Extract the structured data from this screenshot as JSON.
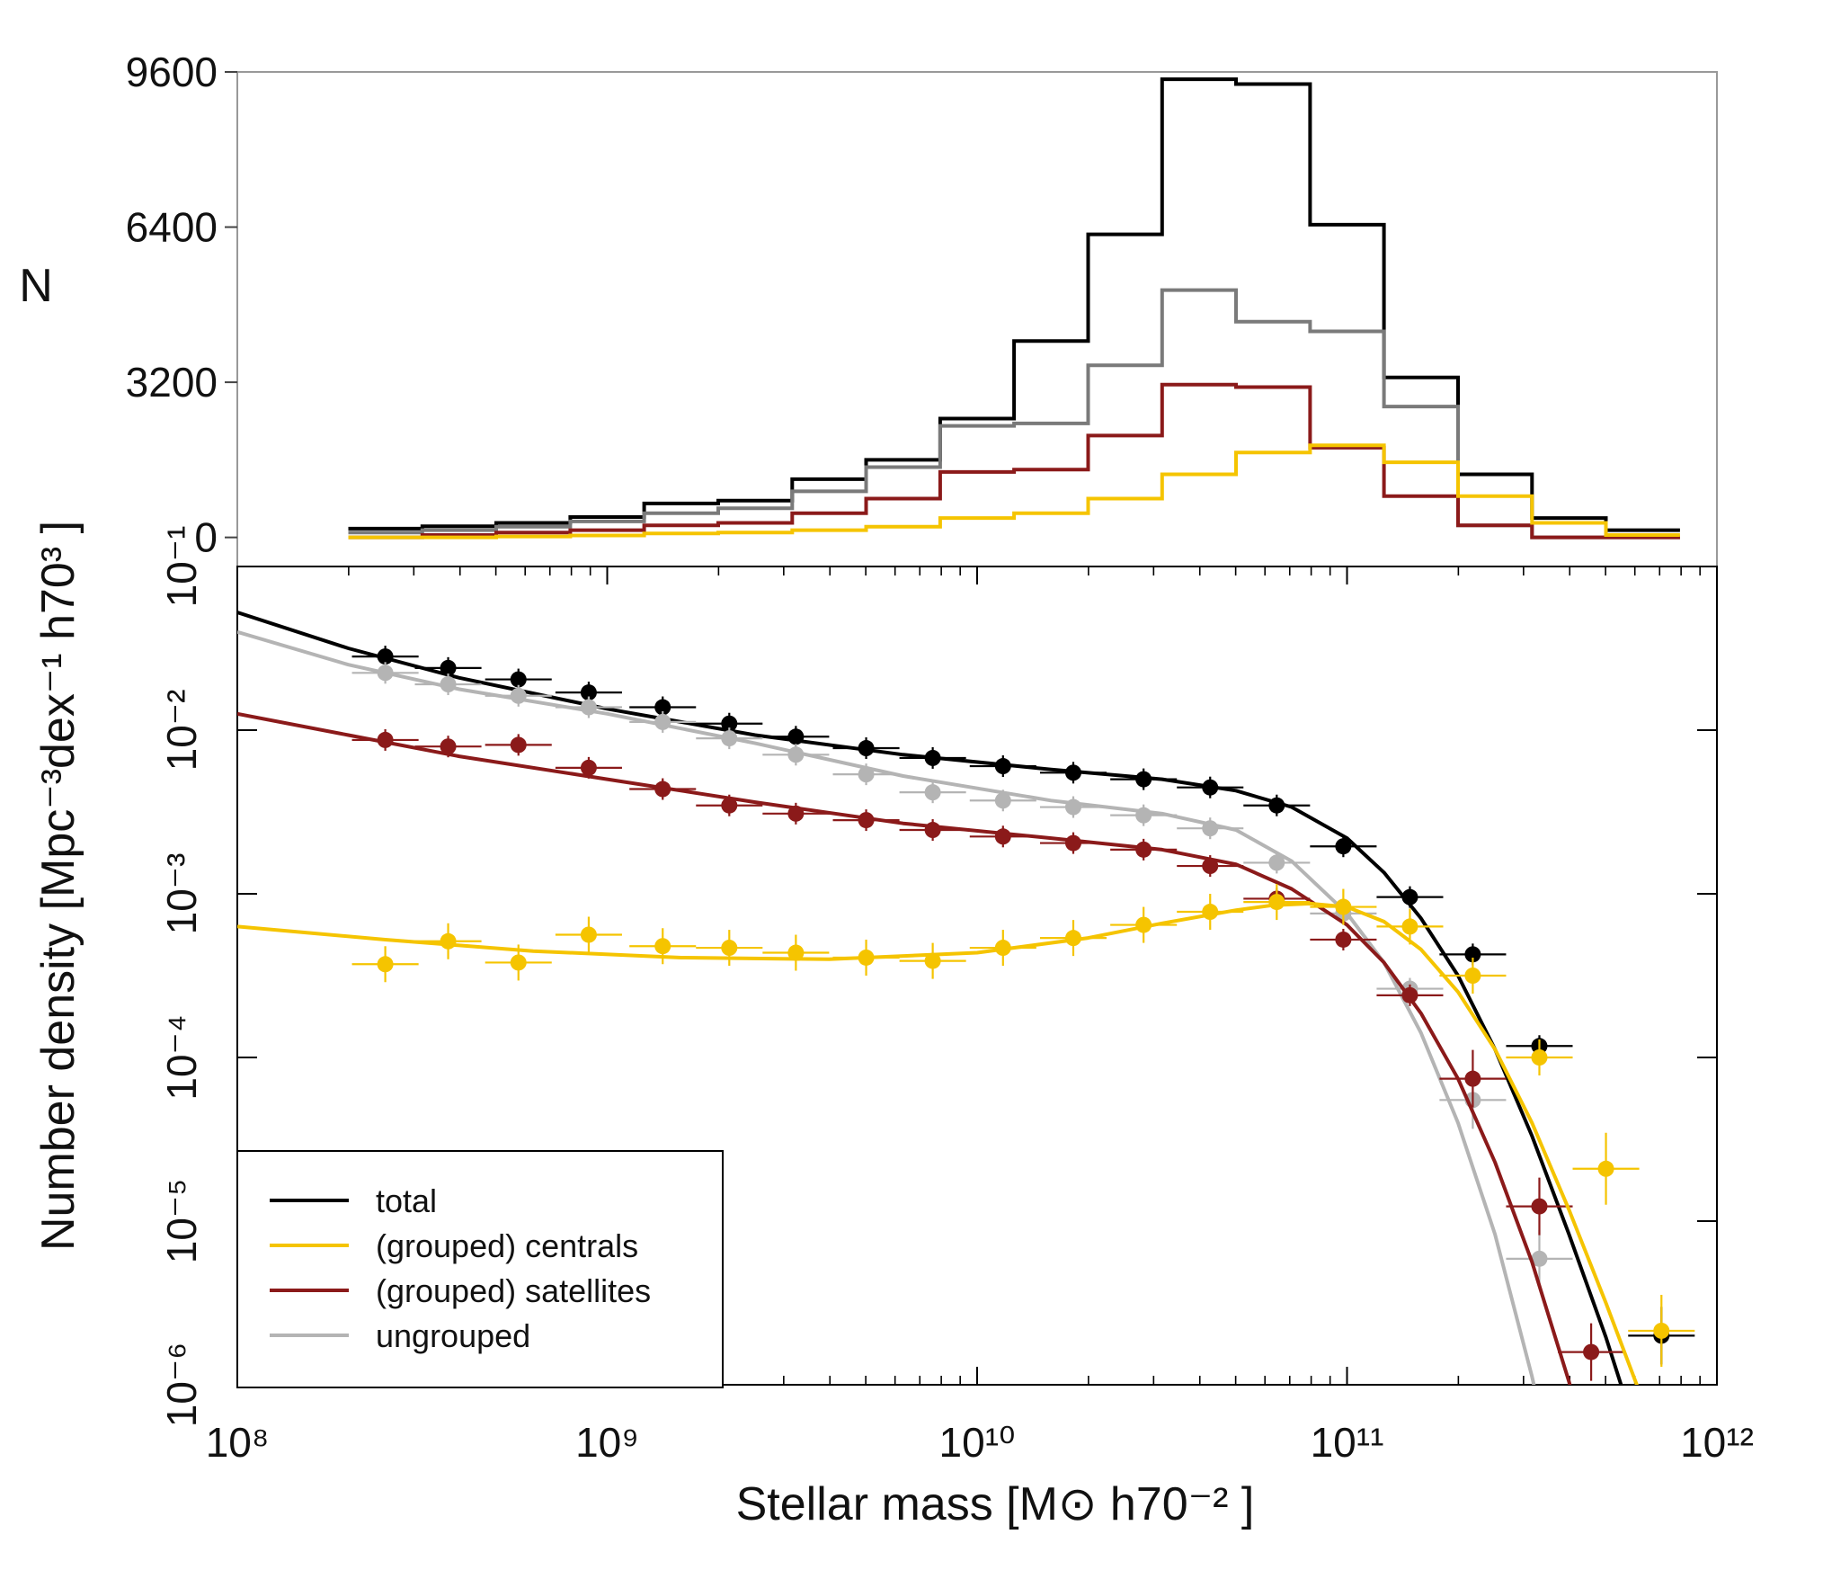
{
  "chart_data": [
    {
      "type": "histogram",
      "panel": "top",
      "ylabel": "N",
      "xscale": "log",
      "xlim": [
        100000000.0,
        1000000000000.0
      ],
      "ylim": [
        -600,
        9600
      ],
      "yticks": [
        0,
        3200,
        6400,
        9600
      ],
      "ytick_labels": [
        "0",
        "3200",
        "6400",
        "9600"
      ],
      "bin_edges_log10": [
        8.3,
        8.5,
        8.7,
        8.9,
        9.1,
        9.3,
        9.5,
        9.7,
        9.9,
        10.1,
        10.3,
        10.5,
        10.7,
        10.9,
        11.1,
        11.3,
        11.5,
        11.7,
        11.9
      ],
      "series": [
        {
          "name": "total",
          "color": "#000000",
          "values": [
            180,
            230,
            300,
            420,
            700,
            760,
            1200,
            1600,
            2450,
            4050,
            6250,
            9450,
            9350,
            6450,
            3300,
            1300,
            400,
            150
          ]
        },
        {
          "name": "ungrouped",
          "color": "#7a7a7a",
          "values": [
            100,
            150,
            220,
            330,
            500,
            600,
            950,
            1450,
            2300,
            2350,
            3550,
            5100,
            4450,
            4250,
            2700,
            250,
            0,
            0
          ]
        },
        {
          "name": "(grouped) satellites",
          "color": "#8b1a1a",
          "values": [
            0,
            50,
            100,
            150,
            250,
            300,
            500,
            800,
            1350,
            1400,
            2100,
            3150,
            3100,
            1850,
            850,
            250,
            0,
            0
          ]
        },
        {
          "name": "(grouped) centrals",
          "color": "#f5c400",
          "values": [
            0,
            0,
            20,
            40,
            80,
            100,
            150,
            220,
            400,
            500,
            800,
            1300,
            1750,
            1900,
            1550,
            850,
            300,
            50
          ]
        }
      ]
    },
    {
      "type": "scatter",
      "panel": "bottom",
      "xlabel": "Stellar mass [M⊙ h70⁻² ]",
      "ylabel": "Number density [Mpc⁻³dex⁻¹ h70³ ]",
      "xscale": "log",
      "yscale": "log",
      "xlim": [
        100000000.0,
        1000000000000.0
      ],
      "ylim": [
        1e-06,
        0.1
      ],
      "xtick_labels": [
        "10⁸",
        "10⁹",
        "10¹⁰",
        "10¹¹",
        "10¹²"
      ],
      "ytick_labels": [
        "10⁻¹",
        "10⁻²",
        "10⁻³",
        "10⁻⁴",
        "10⁻⁵",
        "10⁻⁶"
      ],
      "legend": {
        "location": "bottom-left",
        "entries": [
          "total",
          "(grouped) centrals",
          "(grouped) satellites",
          "ungrouped"
        ]
      },
      "series": [
        {
          "name": "total",
          "color": "#000000",
          "x_log10": [
            8.4,
            8.57,
            8.76,
            8.95,
            9.15,
            9.33,
            9.51,
            9.7,
            9.88,
            10.07,
            10.26,
            10.45,
            10.63,
            10.81,
            10.99,
            11.17,
            11.34,
            11.52,
            11.85
          ],
          "y_log10": [
            -1.55,
            -1.62,
            -1.69,
            -1.77,
            -1.86,
            -1.96,
            -2.04,
            -2.11,
            -2.17,
            -2.22,
            -2.26,
            -2.3,
            -2.35,
            -2.46,
            -2.71,
            -3.02,
            -3.37,
            -3.93,
            -5.7
          ],
          "fit_x_log10": [
            8.0,
            8.3,
            8.6,
            9.0,
            9.4,
            9.8,
            10.2,
            10.5,
            10.7,
            10.85,
            11.0,
            11.1,
            11.2,
            11.3,
            11.4,
            11.5,
            11.6,
            11.7,
            11.8,
            11.85,
            11.88
          ],
          "fit_y_log10": [
            -1.28,
            -1.5,
            -1.68,
            -1.87,
            -2.03,
            -2.15,
            -2.24,
            -2.3,
            -2.37,
            -2.47,
            -2.66,
            -2.87,
            -3.15,
            -3.5,
            -3.95,
            -4.48,
            -5.08,
            -5.71,
            -6.42,
            -6.8,
            -7.0
          ]
        },
        {
          "name": "ungrouped",
          "color": "#b4b4b4",
          "x_log10": [
            8.4,
            8.57,
            8.76,
            8.95,
            9.15,
            9.33,
            9.51,
            9.7,
            9.88,
            10.07,
            10.26,
            10.45,
            10.63,
            10.81,
            10.99,
            11.17,
            11.34,
            11.52
          ],
          "y_log10": [
            -1.65,
            -1.72,
            -1.79,
            -1.86,
            -1.95,
            -2.05,
            -2.15,
            -2.27,
            -2.38,
            -2.43,
            -2.47,
            -2.52,
            -2.6,
            -2.81,
            -3.12,
            -3.58,
            -4.26,
            -5.23
          ],
          "fit_x_log10": [
            8.0,
            8.3,
            8.6,
            9.0,
            9.4,
            9.8,
            10.2,
            10.5,
            10.7,
            10.85,
            11.0,
            11.1,
            11.2,
            11.3,
            11.4,
            11.5,
            11.55,
            11.6
          ],
          "fit_y_log10": [
            -1.4,
            -1.6,
            -1.75,
            -1.9,
            -2.08,
            -2.28,
            -2.43,
            -2.51,
            -2.61,
            -2.8,
            -3.12,
            -3.42,
            -3.85,
            -4.4,
            -5.08,
            -5.95,
            -6.45,
            -7.0
          ]
        },
        {
          "name": "(grouped) satellites",
          "color": "#8b1a1a",
          "x_log10": [
            8.4,
            8.57,
            8.76,
            8.95,
            9.15,
            9.33,
            9.51,
            9.7,
            9.88,
            10.07,
            10.26,
            10.45,
            10.63,
            10.81,
            10.99,
            11.17,
            11.34,
            11.52,
            11.66
          ],
          "y_log10": [
            -2.06,
            -2.1,
            -2.09,
            -2.23,
            -2.36,
            -2.46,
            -2.51,
            -2.55,
            -2.61,
            -2.65,
            -2.69,
            -2.73,
            -2.83,
            -3.03,
            -3.28,
            -3.62,
            -4.13,
            -4.91,
            -5.8
          ],
          "fit_x_log10": [
            8.0,
            8.3,
            8.6,
            9.0,
            9.4,
            9.8,
            10.2,
            10.5,
            10.7,
            10.85,
            11.0,
            11.1,
            11.2,
            11.3,
            11.4,
            11.5,
            11.6,
            11.65,
            11.7
          ],
          "fit_y_log10": [
            -1.9,
            -2.03,
            -2.16,
            -2.3,
            -2.44,
            -2.57,
            -2.66,
            -2.73,
            -2.82,
            -2.97,
            -3.19,
            -3.42,
            -3.73,
            -4.13,
            -4.64,
            -5.25,
            -5.98,
            -6.4,
            -6.85
          ]
        },
        {
          "name": "(grouped) centrals",
          "color": "#f5c400",
          "x_log10": [
            8.4,
            8.57,
            8.76,
            8.95,
            9.15,
            9.33,
            9.51,
            9.7,
            9.88,
            10.07,
            10.26,
            10.45,
            10.63,
            10.81,
            10.99,
            11.17,
            11.34,
            11.52,
            11.7,
            11.85
          ],
          "y_log10": [
            -3.43,
            -3.29,
            -3.42,
            -3.25,
            -3.32,
            -3.33,
            -3.36,
            -3.39,
            -3.41,
            -3.33,
            -3.27,
            -3.19,
            -3.11,
            -3.05,
            -3.08,
            -3.2,
            -3.5,
            -4.0,
            -4.68,
            -5.67
          ],
          "fit_x_log10": [
            8.0,
            8.4,
            8.8,
            9.2,
            9.6,
            10.0,
            10.3,
            10.5,
            10.7,
            10.8,
            10.9,
            11.0,
            11.1,
            11.2,
            11.3,
            11.4,
            11.5,
            11.6,
            11.7,
            11.8,
            11.88
          ],
          "fit_y_log10": [
            -3.2,
            -3.28,
            -3.35,
            -3.39,
            -3.4,
            -3.36,
            -3.27,
            -3.18,
            -3.1,
            -3.07,
            -3.06,
            -3.08,
            -3.17,
            -3.34,
            -3.6,
            -3.95,
            -4.4,
            -4.93,
            -5.5,
            -6.1,
            -6.55
          ]
        }
      ]
    }
  ]
}
